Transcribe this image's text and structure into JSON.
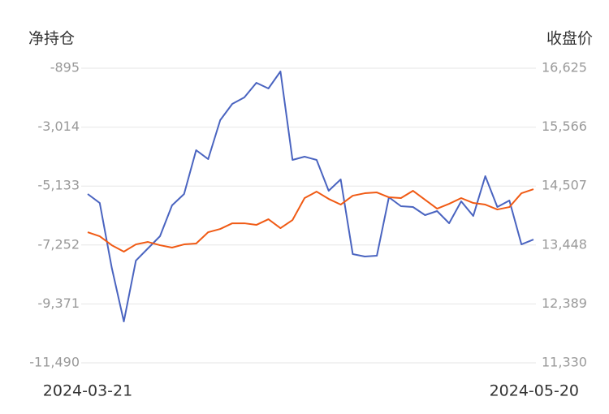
{
  "chart_data": {
    "type": "line",
    "y_label": "净持仓",
    "y2_label": "收盘价",
    "categories": [
      "2024-03-21",
      null,
      null,
      null,
      null,
      null,
      null,
      null,
      null,
      null,
      null,
      null,
      null,
      null,
      null,
      null,
      null,
      null,
      null,
      null,
      null,
      null,
      null,
      null,
      null,
      null,
      null,
      null,
      null,
      null,
      null,
      null,
      null,
      null,
      null,
      null,
      null,
      "2024-05-20"
    ],
    "series": [
      {
        "name": "净持仓",
        "color": "#4a64c0",
        "values": [
          -5419,
          -5741,
          -8076,
          -10002,
          -7813,
          -7375,
          -6937,
          -5828,
          -5419,
          -3843,
          -4164,
          -2763,
          -2179,
          -1946,
          -1420,
          -1625,
          -1012,
          -4193,
          -4077,
          -4193,
          -5303,
          -4894,
          -7580,
          -7667,
          -7638,
          -5536,
          -5857,
          -5886,
          -6178,
          -6032,
          -6470,
          -5682,
          -6208,
          -4777,
          -5886,
          -5653,
          -7229,
          -7054
        ]
      },
      {
        "name": "收盘价",
        "color": "#f05a14",
        "axis": "y2",
        "values": [
          13678,
          13605,
          13444,
          13328,
          13459,
          13503,
          13444,
          13401,
          13459,
          13474,
          13678,
          13736,
          13838,
          13838,
          13809,
          13911,
          13751,
          13897,
          14291,
          14407,
          14276,
          14174,
          14334,
          14378,
          14393,
          14305,
          14291,
          14422,
          14261,
          14101,
          14188,
          14291,
          14203,
          14174,
          14086,
          14130,
          14378,
          14451
        ]
      }
    ],
    "ylim": [
      -11490,
      -895
    ],
    "yticks": [
      {
        "value": -11490,
        "label": "-11,490"
      },
      {
        "value": -9371,
        "label": "-9,371"
      },
      {
        "value": -7252,
        "label": "-7,252"
      },
      {
        "value": -5133,
        "label": "-5,133"
      },
      {
        "value": -3014,
        "label": "-3,014"
      },
      -895
    ],
    "y2lim": [
      11330,
      16625
    ],
    "y2ticks": [
      {
        "value": 11330,
        "label": "11,330"
      },
      {
        "value": 12389,
        "label": "12,389"
      },
      {
        "value": 13448,
        "label": "13,448"
      },
      {
        "value": 14507,
        "label": "14,507"
      },
      {
        "value": 15566,
        "label": "15,566"
      },
      {
        "value": 16625,
        "label": "16,625"
      }
    ],
    "grid": true
  }
}
